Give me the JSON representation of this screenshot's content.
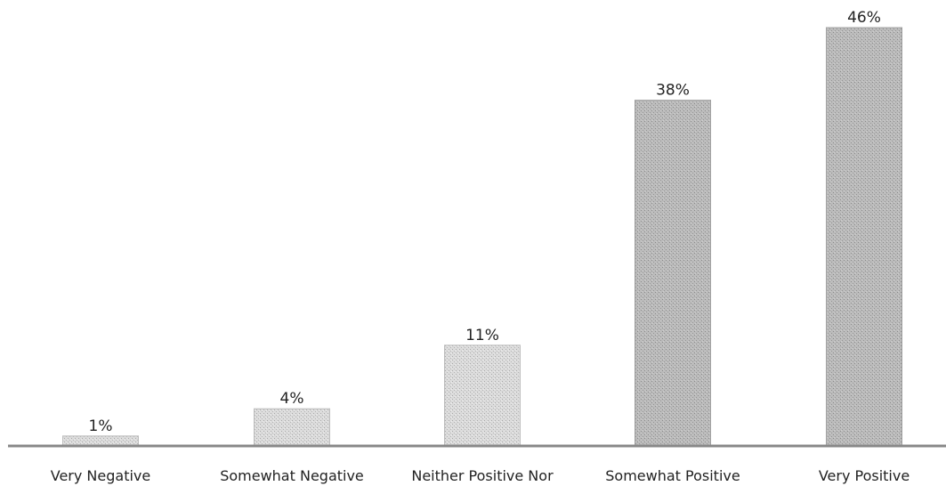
{
  "chart_data": {
    "type": "bar",
    "categories": [
      "Very Negative",
      "Somewhat Negative",
      "Neither Positive Nor",
      "Somewhat Positive",
      "Very Positive"
    ],
    "values": [
      1,
      4,
      11,
      38,
      46
    ],
    "value_labels": [
      "1%",
      "4%",
      "11%",
      "38%",
      "46%"
    ],
    "unit": "%",
    "title": "",
    "xlabel": "",
    "ylabel": "",
    "ylim": [
      0,
      46
    ],
    "grid": false,
    "legend": "none",
    "colors": {
      "light_bar": "#d8d8d8",
      "dark_bar": "#b8b8b8",
      "axis": "#888888"
    }
  }
}
